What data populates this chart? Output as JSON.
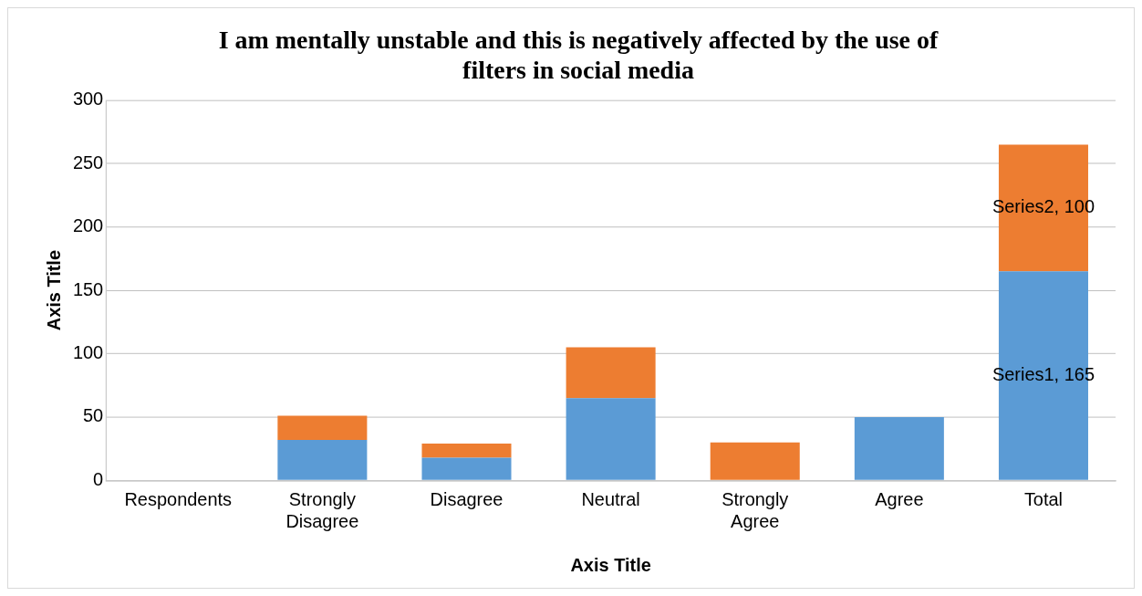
{
  "chart_data": {
    "type": "bar",
    "title": "I am mentally unstable and this is negatively affected by the use of filters in social media",
    "xlabel": "Axis Title",
    "ylabel": "Axis Title",
    "categories": [
      "Respondents",
      "Strongly Disagree",
      "Disagree",
      "Neutral",
      "Strongly Agree",
      "Agree",
      "Total"
    ],
    "stacked": true,
    "ylim": [
      0,
      300
    ],
    "yticks": [
      0,
      50,
      100,
      150,
      200,
      250,
      300
    ],
    "grid": "y",
    "legend": false,
    "series": [
      {
        "color": "#5b9bd5",
        "values": [
          null,
          32,
          18,
          65,
          0,
          50,
          165
        ],
        "value_labels": [
          null,
          null,
          null,
          null,
          null,
          null,
          "Series1, 165"
        ]
      },
      {
        "color": "#ed7d31",
        "values": [
          null,
          19,
          11,
          40,
          30,
          0,
          100
        ],
        "value_labels": [
          null,
          null,
          null,
          null,
          null,
          null,
          "Series2, 100"
        ]
      }
    ]
  }
}
